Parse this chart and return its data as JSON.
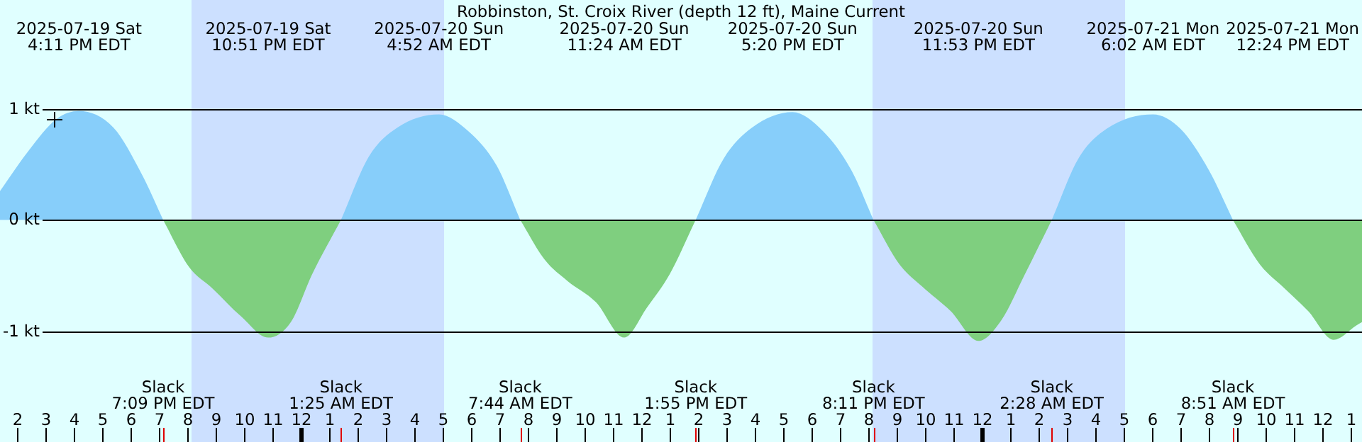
{
  "chart_data": {
    "type": "area",
    "title": "Robbinston, St. Croix River (depth 12 ft), Maine Current",
    "xlim": [
      "2025-07-19T13:24",
      "2025-07-21T13:24"
    ],
    "ylim": [
      -2.0,
      1.98
    ],
    "yticks": [
      {
        "value": 1,
        "label": "1 kt"
      },
      {
        "value": 0,
        "label": "0 kt"
      },
      {
        "value": -1,
        "label": "-1 kt"
      }
    ],
    "xticks": [
      {
        "value": "2025-07-19T14:00",
        "label": "2"
      },
      {
        "value": "2025-07-19T15:00",
        "label": "3"
      },
      {
        "value": "2025-07-19T16:00",
        "label": "4"
      },
      {
        "value": "2025-07-19T17:00",
        "label": "5"
      },
      {
        "value": "2025-07-19T18:00",
        "label": "6"
      },
      {
        "value": "2025-07-19T19:00",
        "label": "7"
      },
      {
        "value": "2025-07-19T20:00",
        "label": "8"
      },
      {
        "value": "2025-07-19T21:00",
        "label": "9"
      },
      {
        "value": "2025-07-19T22:00",
        "label": "10"
      },
      {
        "value": "2025-07-19T23:00",
        "label": "11"
      },
      {
        "value": "2025-07-20T00:00",
        "label": "12"
      },
      {
        "value": "2025-07-20T01:00",
        "label": "1"
      },
      {
        "value": "2025-07-20T02:00",
        "label": "2"
      },
      {
        "value": "2025-07-20T03:00",
        "label": "3"
      },
      {
        "value": "2025-07-20T04:00",
        "label": "4"
      },
      {
        "value": "2025-07-20T05:00",
        "label": "5"
      },
      {
        "value": "2025-07-20T06:00",
        "label": "6"
      },
      {
        "value": "2025-07-20T07:00",
        "label": "7"
      },
      {
        "value": "2025-07-20T08:00",
        "label": "8"
      },
      {
        "value": "2025-07-20T09:00",
        "label": "9"
      },
      {
        "value": "2025-07-20T10:00",
        "label": "10"
      },
      {
        "value": "2025-07-20T11:00",
        "label": "11"
      },
      {
        "value": "2025-07-20T12:00",
        "label": "12"
      },
      {
        "value": "2025-07-20T13:00",
        "label": "1"
      },
      {
        "value": "2025-07-20T14:00",
        "label": "2"
      },
      {
        "value": "2025-07-20T15:00",
        "label": "3"
      },
      {
        "value": "2025-07-20T16:00",
        "label": "4"
      },
      {
        "value": "2025-07-20T17:00",
        "label": "5"
      },
      {
        "value": "2025-07-20T18:00",
        "label": "6"
      },
      {
        "value": "2025-07-20T19:00",
        "label": "7"
      },
      {
        "value": "2025-07-20T20:00",
        "label": "8"
      },
      {
        "value": "2025-07-20T21:00",
        "label": "9"
      },
      {
        "value": "2025-07-20T22:00",
        "label": "10"
      },
      {
        "value": "2025-07-20T23:00",
        "label": "11"
      },
      {
        "value": "2025-07-21T00:00",
        "label": "12"
      },
      {
        "value": "2025-07-21T01:00",
        "label": "1"
      },
      {
        "value": "2025-07-21T02:00",
        "label": "2"
      },
      {
        "value": "2025-07-21T03:00",
        "label": "3"
      },
      {
        "value": "2025-07-21T04:00",
        "label": "4"
      },
      {
        "value": "2025-07-21T05:00",
        "label": "5"
      },
      {
        "value": "2025-07-21T06:00",
        "label": "6"
      },
      {
        "value": "2025-07-21T07:00",
        "label": "7"
      },
      {
        "value": "2025-07-21T08:00",
        "label": "8"
      },
      {
        "value": "2025-07-21T09:00",
        "label": "9"
      },
      {
        "value": "2025-07-21T10:00",
        "label": "10"
      },
      {
        "value": "2025-07-21T11:00",
        "label": "11"
      },
      {
        "value": "2025-07-21T12:00",
        "label": "12"
      },
      {
        "value": "2025-07-21T13:00",
        "label": "1"
      },
      {
        "value": "2025-07-19T19:09",
        "label": null
      },
      {
        "value": "2025-07-20T01:25",
        "label": null
      },
      {
        "value": "2025-07-20T07:44",
        "label": null
      },
      {
        "value": "2025-07-20T13:55",
        "label": null
      },
      {
        "value": "2025-07-20T20:11",
        "label": null
      },
      {
        "value": "2025-07-21T02:28",
        "label": null
      },
      {
        "value": "2025-07-21T08:51",
        "label": null
      }
    ],
    "grid": "y",
    "legend": false,
    "bands": [
      {
        "axis": "x",
        "from": "2025-07-19T20:09",
        "to": "2025-07-20T05:03",
        "color": "#cce0ff"
      },
      {
        "axis": "x",
        "from": "2025-07-20T20:09",
        "to": "2025-07-21T05:03",
        "color": "#cce0ff"
      }
    ],
    "series": [
      {
        "color": "#87cefa",
        "x": [
          "2025-07-19T13:24",
          "2025-07-19T14:24",
          "2025-07-19T15:24",
          "2025-07-19T16:11",
          "2025-07-19T17:24",
          "2025-07-19T18:24",
          "2025-07-19T19:09",
          "2025-07-19T22:00",
          "2025-07-20T01:25",
          "2025-07-20T02:24",
          "2025-07-20T03:24",
          "2025-07-20T04:52",
          "2025-07-20T05:54",
          "2025-07-20T06:54",
          "2025-07-20T07:44",
          "2025-07-20T11:00",
          "2025-07-20T13:55",
          "2025-07-20T14:54",
          "2025-07-20T15:54",
          "2025-07-20T17:20",
          "2025-07-20T18:24",
          "2025-07-20T19:24",
          "2025-07-20T20:11",
          "2025-07-20T23:00",
          "2025-07-21T02:28",
          "2025-07-21T03:24",
          "2025-07-21T04:24",
          "2025-07-21T06:02",
          "2025-07-21T07:00",
          "2025-07-21T08:00",
          "2025-07-21T08:51"
        ],
        "values": [
          0.26,
          0.62,
          0.91,
          0.98,
          0.83,
          0.41,
          0,
          null,
          0,
          0.57,
          0.83,
          0.95,
          0.8,
          0.49,
          0,
          null,
          0,
          0.55,
          0.83,
          0.97,
          0.8,
          0.45,
          0,
          null,
          0,
          0.55,
          0.82,
          0.95,
          0.82,
          0.45,
          0
        ]
      },
      {
        "color": "#7fcf7f",
        "x": [
          "2025-07-19T19:09",
          "2025-07-19T20:03",
          "2025-07-19T20:54",
          "2025-07-19T21:54",
          "2025-07-19T22:51",
          "2025-07-19T23:39",
          "2025-07-20T00:24",
          "2025-07-20T01:25",
          "2025-07-20T04:00",
          "2025-07-20T07:44",
          "2025-07-20T08:36",
          "2025-07-20T09:24",
          "2025-07-20T10:24",
          "2025-07-20T11:24",
          "2025-07-20T12:12",
          "2025-07-20T13:00",
          "2025-07-20T13:55",
          "2025-07-20T17:00",
          "2025-07-20T20:11",
          "2025-07-20T21:06",
          "2025-07-20T21:54",
          "2025-07-20T22:54",
          "2025-07-20T23:53",
          "2025-07-21T00:42",
          "2025-07-21T01:30",
          "2025-07-21T02:28",
          "2025-07-21T05:00",
          "2025-07-21T08:51",
          "2025-07-21T09:48",
          "2025-07-21T10:36",
          "2025-07-21T11:30",
          "2025-07-21T12:24",
          "2025-07-21T13:12",
          "2025-07-21T13:24"
        ],
        "values": [
          0,
          -0.42,
          -0.62,
          -0.87,
          -1.06,
          -0.92,
          -0.49,
          0,
          null,
          0,
          -0.36,
          -0.55,
          -0.74,
          -1.06,
          -0.79,
          -0.49,
          0,
          null,
          0,
          -0.4,
          -0.6,
          -0.82,
          -1.09,
          -0.9,
          -0.5,
          0,
          null,
          0,
          -0.4,
          -0.6,
          -0.82,
          -1.08,
          -0.95,
          -0.92
        ]
      }
    ],
    "annotations": [
      "2025-07-19 Sat\n4:11 PM EDT",
      "2025-07-19 Sat\n10:51 PM EDT",
      "2025-07-20 Sun\n4:52 AM EDT",
      "2025-07-20 Sun\n11:24 AM EDT",
      "2025-07-20 Sun\n5:20 PM EDT",
      "2025-07-20 Sun\n11:53 PM EDT",
      "2025-07-21 Mon\n6:02 AM EDT",
      "2025-07-21 Mon\n12:24 PM EDT",
      "Slack\n7:09 PM EDT",
      "Slack\n1:25 AM EDT",
      "Slack\n7:44 AM EDT",
      "Slack\n1:55 PM EDT",
      "Slack\n8:11 PM EDT",
      "Slack\n2:28 AM EDT",
      "Slack\n8:51 AM EDT"
    ]
  }
}
